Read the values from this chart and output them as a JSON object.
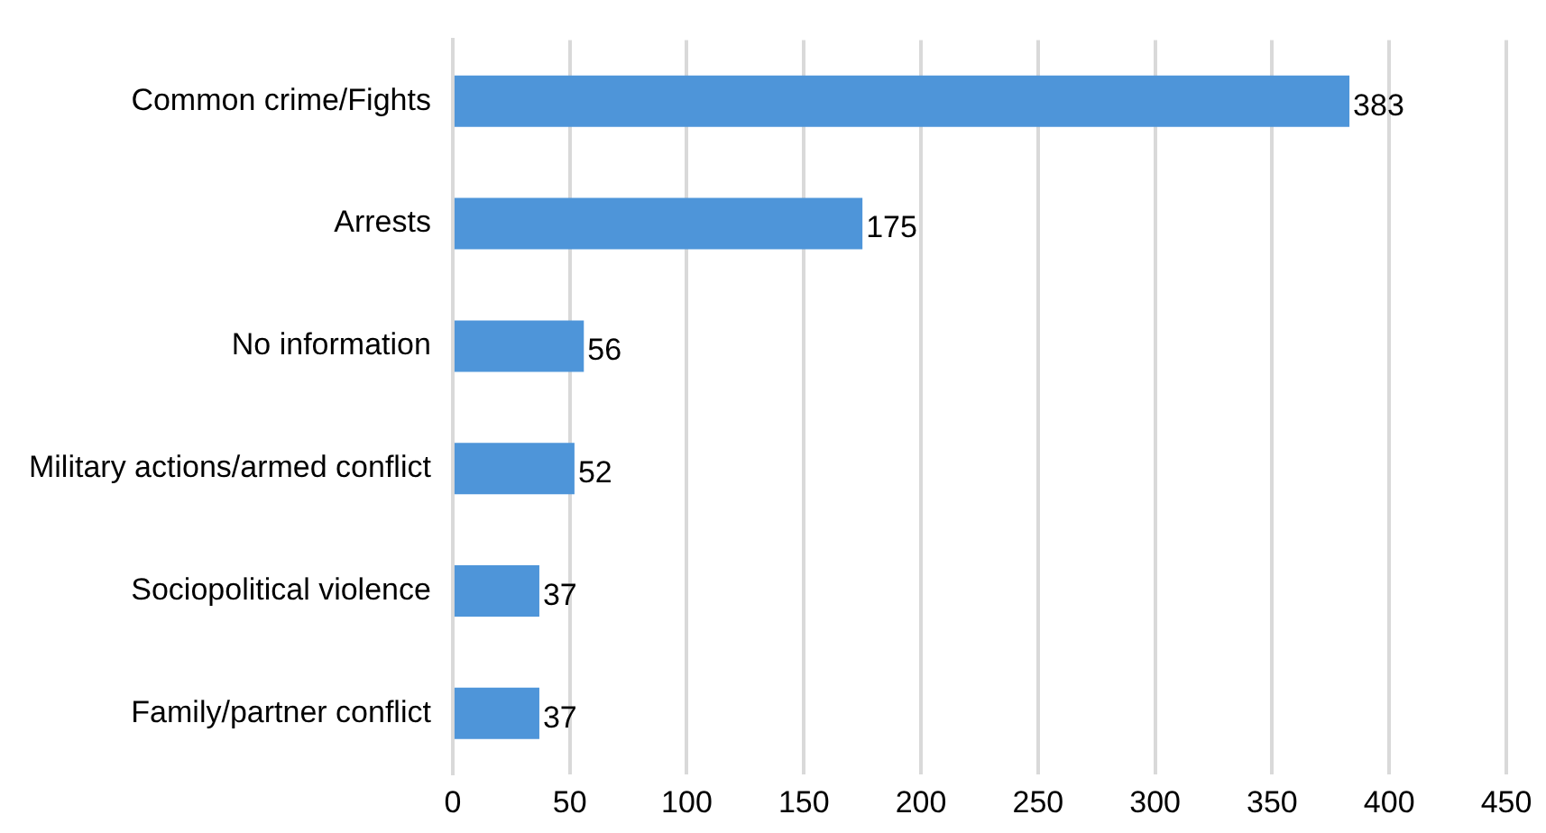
{
  "chart_data": {
    "type": "bar",
    "orientation": "horizontal",
    "categories": [
      "Common crime/Fights",
      "Arrests",
      "No information",
      "Military actions/armed conflict",
      "Sociopolitical violence",
      "Family/partner conflict"
    ],
    "values": [
      383,
      175,
      56,
      52,
      37,
      37
    ],
    "color": "#4e95d9",
    "xlim": [
      0,
      450
    ],
    "xticks": [
      0,
      50,
      100,
      150,
      200,
      250,
      300,
      350,
      400,
      450
    ],
    "grid": "x",
    "data_labels": true,
    "legend": false
  }
}
